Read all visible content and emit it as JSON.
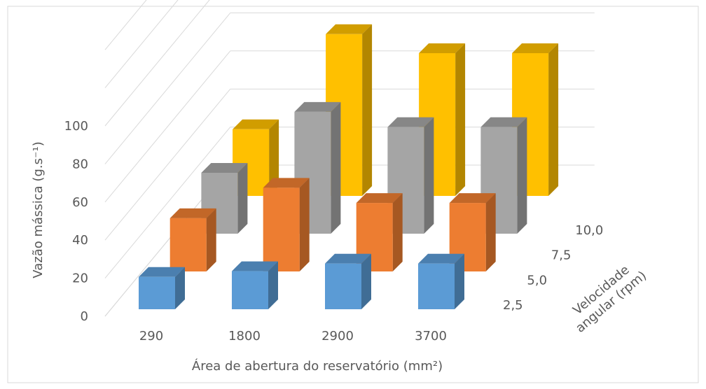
{
  "chart_data": {
    "type": "bar",
    "subtype": "3d-column",
    "title": "",
    "xlabel": "Área de abertura do reservatório (mm²)",
    "ylabel": "Vazão mássica (g.s⁻¹)",
    "zlabel": "Velocidade angular (rpm)",
    "categories": [
      "290",
      "1800",
      "2900",
      "3700"
    ],
    "depth_categories": [
      "2,5",
      "5,0",
      "7,5",
      "10,0"
    ],
    "ylim": [
      0,
      100
    ],
    "yticks": [
      "0",
      "20",
      "40",
      "60",
      "80",
      "100"
    ],
    "grid": true,
    "series": [
      {
        "name": "2,5",
        "color": "#5B9BD5",
        "values": [
          17,
          20,
          24,
          24
        ]
      },
      {
        "name": "5,0",
        "color": "#ED7D31",
        "values": [
          28,
          44,
          36,
          36
        ]
      },
      {
        "name": "7,5",
        "color": "#A5A5A5",
        "values": [
          32,
          64,
          56,
          56
        ]
      },
      {
        "name": "10,0",
        "color": "#FFC000",
        "values": [
          35,
          85,
          75,
          75
        ]
      }
    ]
  }
}
